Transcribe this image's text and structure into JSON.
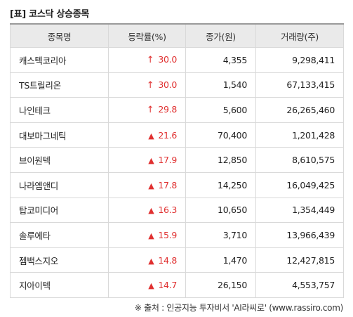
{
  "title": "[표] 코스닥 상승종목",
  "table": {
    "headers": [
      "종목명",
      "등락률(%)",
      "종가(원)",
      "거래량(주)"
    ],
    "rows": [
      {
        "name": "캐스텍코리아",
        "mark": "↑",
        "rate": "30.0",
        "price": "4,355",
        "volume": "9,298,411"
      },
      {
        "name": "TS트릴리온",
        "mark": "↑",
        "rate": "30.0",
        "price": "1,540",
        "volume": "67,133,415"
      },
      {
        "name": "나인테크",
        "mark": "↑",
        "rate": "29.8",
        "price": "5,600",
        "volume": "26,265,460"
      },
      {
        "name": "대보마그네틱",
        "mark": "▲",
        "rate": "21.6",
        "price": "70,400",
        "volume": "1,201,428"
      },
      {
        "name": "브이원텍",
        "mark": "▲",
        "rate": "17.9",
        "price": "12,850",
        "volume": "8,610,575"
      },
      {
        "name": "나라엠앤디",
        "mark": "▲",
        "rate": "17.8",
        "price": "14,250",
        "volume": "16,049,425"
      },
      {
        "name": "탑코미디어",
        "mark": "▲",
        "rate": "16.3",
        "price": "10,650",
        "volume": "1,354,449"
      },
      {
        "name": "솔루에타",
        "mark": "▲",
        "rate": "15.9",
        "price": "3,710",
        "volume": "13,966,439"
      },
      {
        "name": "젬백스지오",
        "mark": "▲",
        "rate": "14.8",
        "price": "1,470",
        "volume": "12,427,815"
      },
      {
        "name": "지아이텍",
        "mark": "▲",
        "rate": "14.7",
        "price": "26,150",
        "volume": "4,553,757"
      }
    ]
  },
  "footer": "※ 출처 : 인공지능 투자비서 'AI라씨로' (www.rassiro.com)",
  "colors": {
    "rise": "#e03030",
    "header_bg": "#eaeaea",
    "border": "#d9d9d9"
  }
}
